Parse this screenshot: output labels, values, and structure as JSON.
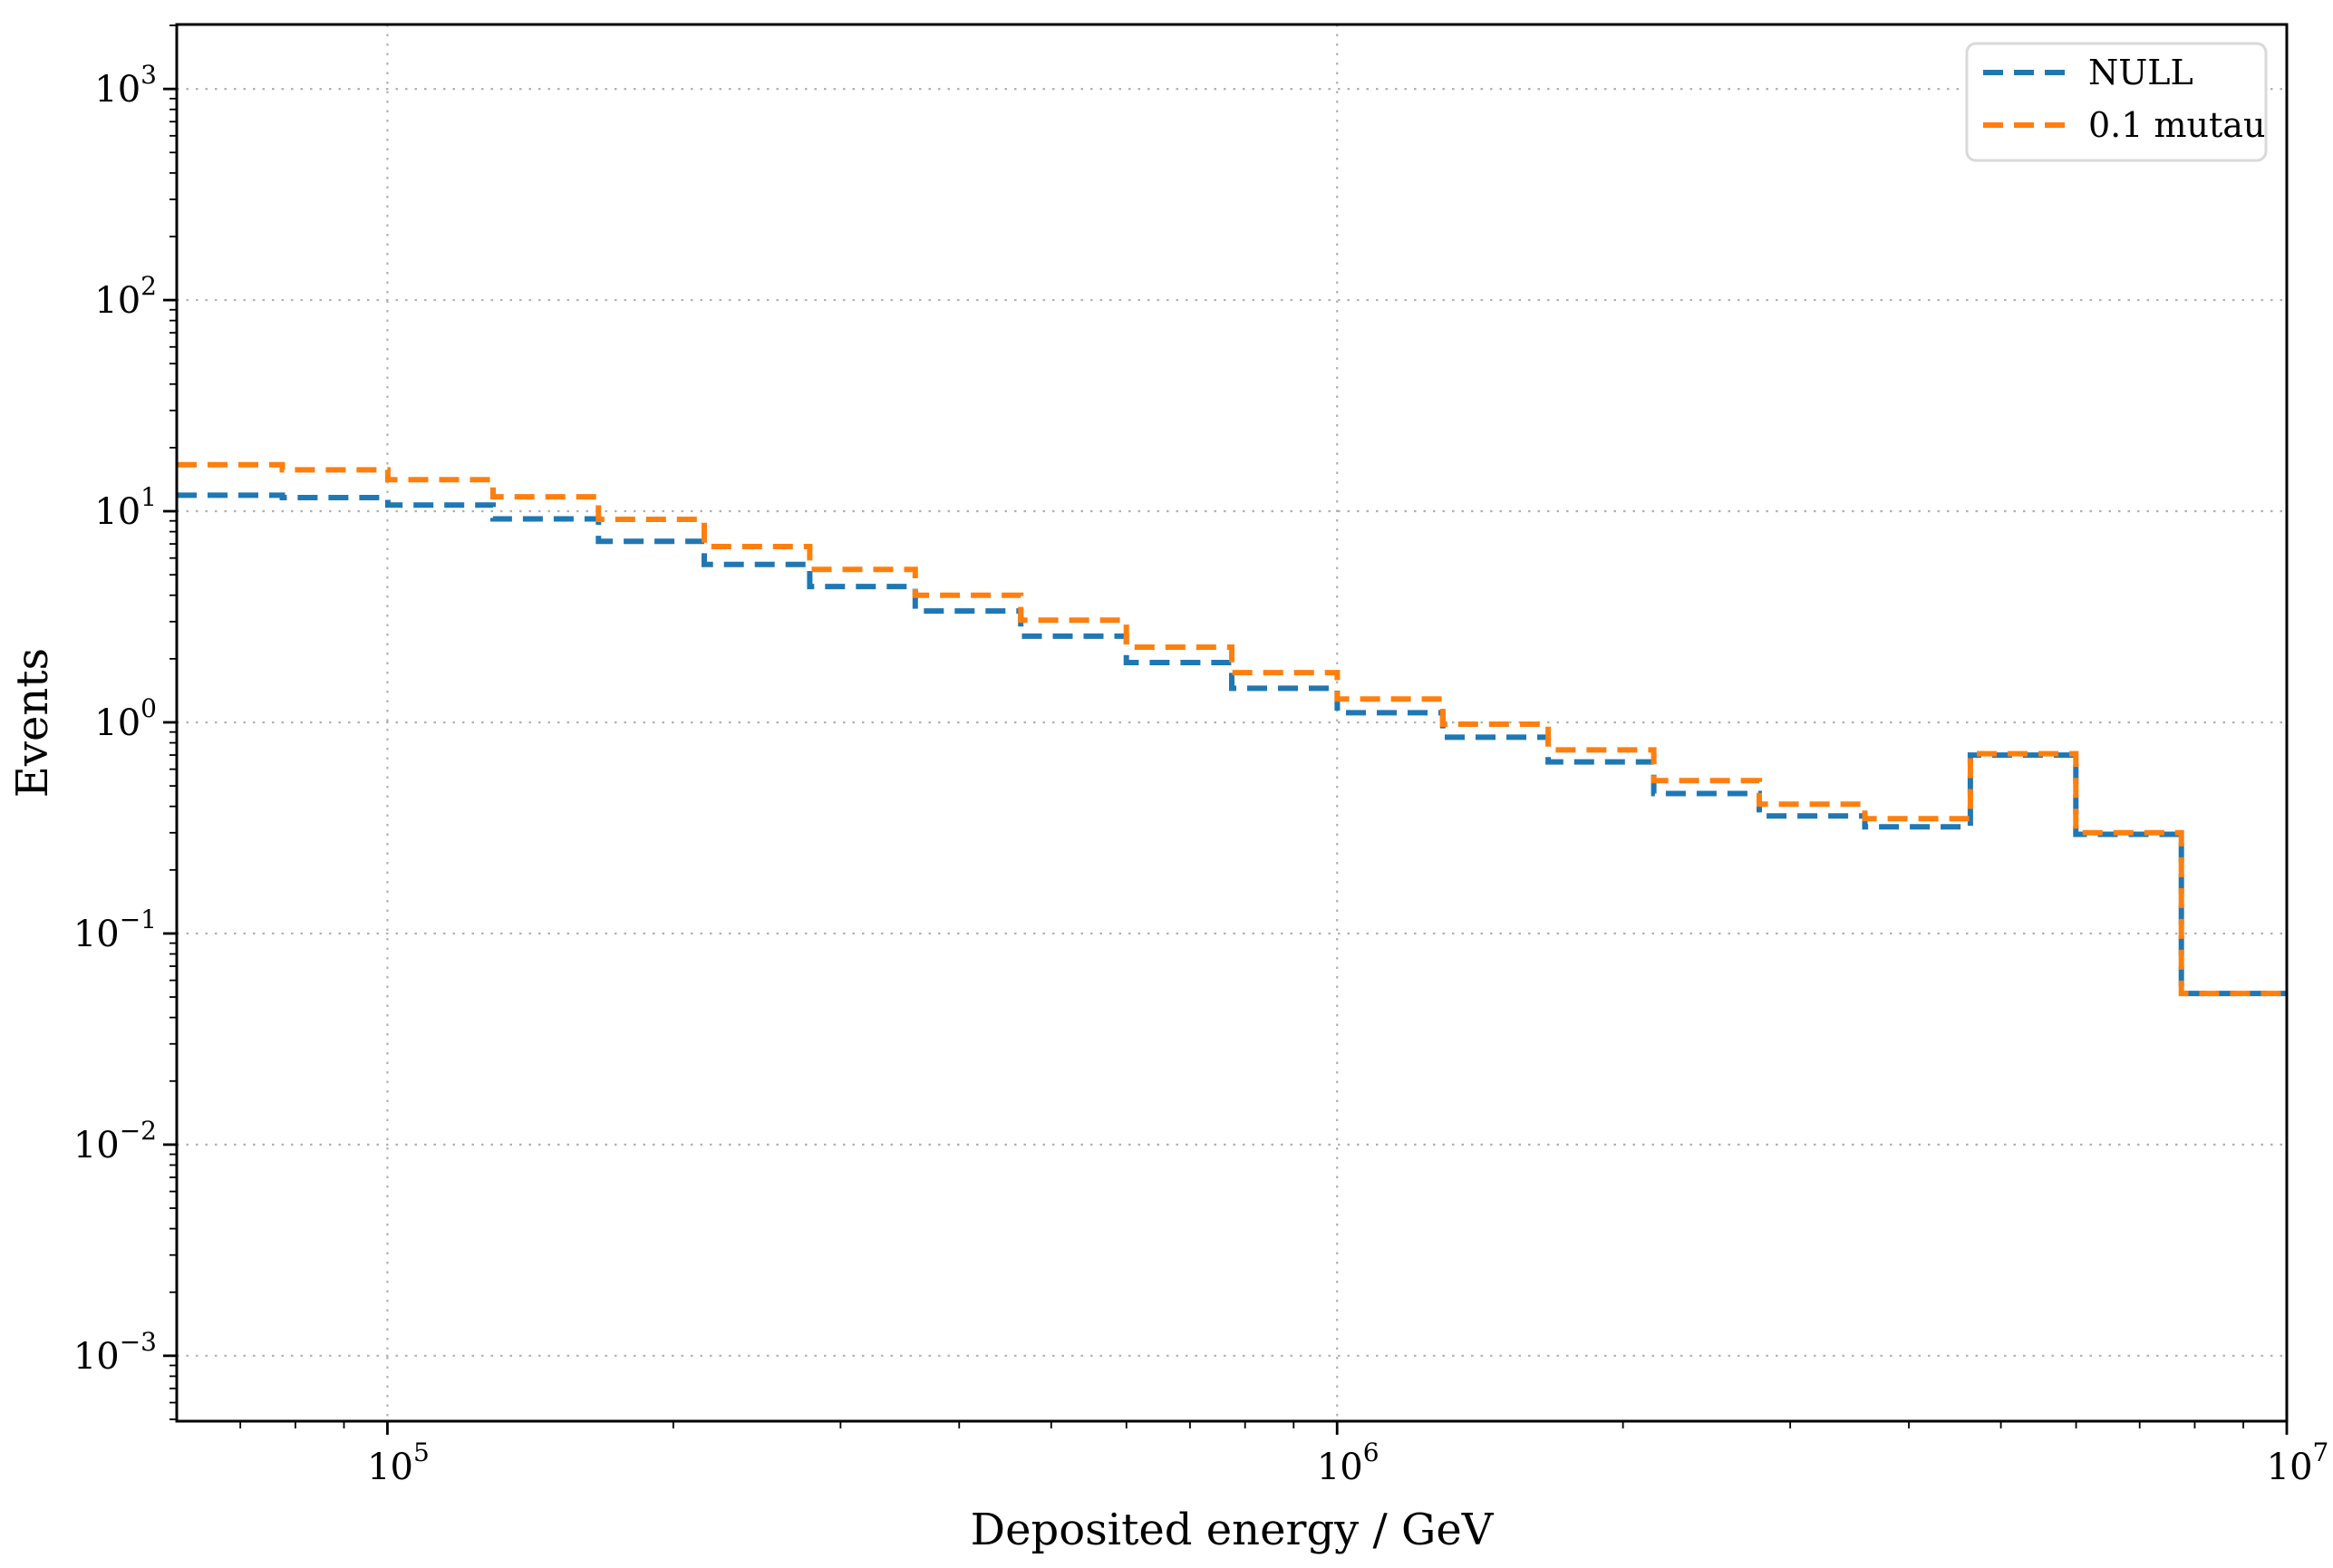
{
  "figure": {
    "background": "#ffffff"
  },
  "chart_data": {
    "type": "step-histogram",
    "title": "",
    "xlabel": "Deposited energy / GeV",
    "ylabel": "Events",
    "xscale": "log",
    "yscale": "log",
    "xlim": [
      60000,
      10000000
    ],
    "ylim": [
      0.00049,
      2020
    ],
    "x_major_ticks": [
      100000,
      1000000,
      10000000
    ],
    "y_major_ticks": [
      0.001,
      0.01,
      0.1,
      1,
      10,
      100,
      1000
    ],
    "grid": {
      "which": "major",
      "style": "dotted",
      "color": "#b0b0b0"
    },
    "legend": {
      "location": "upper right"
    },
    "bin_edges": [
      60000,
      77500,
      100100,
      129200,
      166800,
      215600,
      278400,
      359600,
      464400,
      599900,
      774600,
      1000400,
      1292000,
      1668400,
      2154900,
      2783100,
      3594900,
      4642900,
      5996600,
      7744900,
      10000000
    ],
    "series": [
      {
        "name": "NULL",
        "color": "#1f77b4",
        "linestyle": "dashed",
        "values": [
          11.9,
          11.6,
          10.7,
          9.2,
          7.2,
          5.6,
          4.4,
          3.37,
          2.56,
          1.92,
          1.45,
          1.11,
          0.85,
          0.65,
          0.46,
          0.36,
          0.32,
          0.7,
          0.295,
          0.052
        ]
      },
      {
        "name": "0.1 mutau",
        "color": "#ff7f0e",
        "linestyle": "dashed",
        "values": [
          16.6,
          15.7,
          14.1,
          11.7,
          9.15,
          6.8,
          5.3,
          4.0,
          3.05,
          2.27,
          1.72,
          1.29,
          0.98,
          0.74,
          0.53,
          0.41,
          0.35,
          0.71,
          0.3,
          0.052
        ]
      }
    ]
  }
}
